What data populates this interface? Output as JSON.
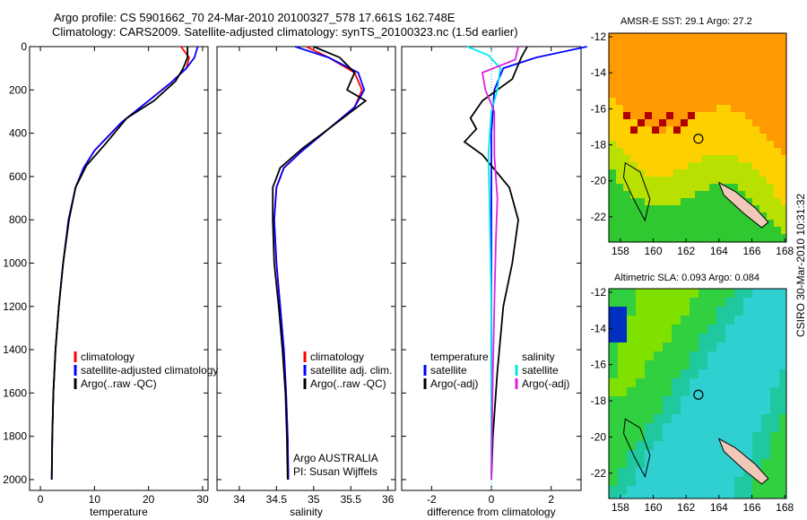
{
  "titles": {
    "line1": "Argo profile: CS 5901662_70 24-Mar-2010 20100327_578 17.661S 162.748E",
    "line2": "Climatology: CARS2009. Satellite-adjusted climatology: synTS_20100323.nc (1.5d earlier)"
  },
  "colors": {
    "climatology": "#ff0000",
    "satellite": "#0000ff",
    "argo": "#000000",
    "sal_satellite": "#00e5ee",
    "sal_argo": "#e020e0"
  },
  "chart_data": [
    {
      "type": "line",
      "xlabel": "temperature",
      "ylim": [
        2050,
        0
      ],
      "xlim": [
        -2,
        31
      ],
      "xticks": [
        0,
        10,
        20,
        30
      ],
      "yticks": [
        0,
        200,
        400,
        600,
        800,
        1000,
        1200,
        1400,
        1600,
        1800,
        2000
      ],
      "legend": [
        "climatology",
        "satellite-adjusted climatology",
        "Argo(..raw -QC)"
      ],
      "series": [
        {
          "name": "climatology",
          "color": "#ff0000",
          "x": [
            26,
            27.5,
            27,
            24,
            20,
            15,
            10,
            8,
            6.5,
            5.2,
            4.2,
            3.4,
            2.8,
            2.4,
            2.2,
            2.1
          ],
          "y": [
            0,
            50,
            100,
            170,
            250,
            350,
            480,
            560,
            650,
            800,
            1000,
            1200,
            1400,
            1600,
            1800,
            2000
          ]
        },
        {
          "name": "satellite-adjusted climatology",
          "color": "#0000ff",
          "x": [
            29.1,
            28.5,
            27,
            24,
            20,
            15,
            10,
            8,
            6.5,
            5.2,
            4.2,
            3.4,
            2.8,
            2.4,
            2.2,
            2.1
          ],
          "y": [
            0,
            50,
            100,
            170,
            250,
            350,
            480,
            560,
            650,
            800,
            1000,
            1200,
            1400,
            1600,
            1800,
            2000
          ]
        },
        {
          "name": "Argo(..raw -QC)",
          "color": "#000000",
          "x": [
            27.2,
            27.2,
            26.4,
            25,
            21,
            16,
            12,
            8.5,
            6.5,
            5.3,
            4.2,
            3.4,
            2.8,
            2.4,
            2.2,
            2.1
          ],
          "y": [
            0,
            50,
            100,
            160,
            250,
            330,
            450,
            550,
            650,
            800,
            1000,
            1200,
            1400,
            1600,
            1800,
            2000
          ]
        }
      ]
    },
    {
      "type": "line",
      "xlabel": "salinity",
      "ylim": [
        2050,
        0
      ],
      "xlim": [
        33.7,
        36.1
      ],
      "xticks": [
        34,
        34.5,
        35,
        35.5,
        36
      ],
      "legend": [
        "climatology",
        "satellite adj. clim.",
        "Argo(..raw -QC)"
      ],
      "annotations": [
        "Argo AUSTRALIA",
        "PI: Susan Wijffels"
      ],
      "series": [
        {
          "name": "climatology",
          "color": "#ff0000",
          "x": [
            34.9,
            35.2,
            35.55,
            35.65,
            35.55,
            35.2,
            34.85,
            34.6,
            34.5,
            34.47,
            34.5,
            34.55,
            34.6,
            34.63,
            34.65,
            34.66
          ],
          "y": [
            0,
            50,
            120,
            200,
            280,
            380,
            480,
            560,
            650,
            800,
            1000,
            1200,
            1400,
            1600,
            1800,
            2000
          ]
        },
        {
          "name": "satellite adj. clim.",
          "color": "#0000ff",
          "x": [
            34.75,
            35.2,
            35.6,
            35.68,
            35.55,
            35.2,
            34.85,
            34.6,
            34.5,
            34.47,
            34.5,
            34.55,
            34.6,
            34.63,
            34.65,
            34.66
          ],
          "y": [
            0,
            50,
            120,
            200,
            280,
            380,
            480,
            560,
            650,
            800,
            1000,
            1200,
            1400,
            1600,
            1800,
            2000
          ]
        },
        {
          "name": "Argo(..raw -QC)",
          "color": "#000000",
          "x": [
            35.0,
            35.35,
            35.55,
            35.45,
            35.7,
            35.2,
            34.85,
            34.55,
            34.45,
            34.45,
            34.47,
            34.53,
            34.58,
            34.62,
            34.64,
            34.65
          ],
          "y": [
            0,
            50,
            120,
            200,
            250,
            380,
            470,
            560,
            650,
            800,
            1000,
            1200,
            1400,
            1600,
            1800,
            2000
          ]
        }
      ]
    },
    {
      "type": "line",
      "xlabel": "difference from climatology",
      "ylim": [
        2050,
        0
      ],
      "xlim": [
        -3,
        3
      ],
      "xticks": [
        -2,
        0,
        2
      ],
      "legend_groups": [
        {
          "title": "temperature",
          "items": [
            "satellite",
            "Argo(-adj)"
          ]
        },
        {
          "title": "salinity",
          "items": [
            "satellite",
            "Argo(-adj)"
          ]
        }
      ],
      "series": [
        {
          "name": "temperature satellite",
          "color": "#0000ff",
          "x": [
            3.2,
            1.5,
            0.4,
            0.1,
            0,
            0,
            0,
            0,
            0,
            0,
            0
          ],
          "y": [
            0,
            50,
            100,
            200,
            400,
            600,
            800,
            1000,
            1400,
            1800,
            2000
          ]
        },
        {
          "name": "temperature Argo(-adj)",
          "color": "#000000",
          "x": [
            1.2,
            1.0,
            0.7,
            -0.3,
            -0.7,
            -0.5,
            -0.9,
            -0.3,
            0.6,
            0.9,
            0.7,
            0.4,
            0.2,
            0.05,
            0
          ],
          "y": [
            0,
            50,
            150,
            250,
            330,
            380,
            440,
            500,
            650,
            800,
            1000,
            1200,
            1500,
            1800,
            2000
          ]
        },
        {
          "name": "salinity satellite",
          "color": "#00e5ee",
          "x": [
            -0.8,
            -0.1,
            0.3,
            0.2,
            0,
            -0.1,
            -0.05,
            0,
            0,
            0
          ],
          "y": [
            0,
            40,
            100,
            200,
            300,
            500,
            800,
            1200,
            1600,
            2000
          ]
        },
        {
          "name": "salinity Argo(-adj)",
          "color": "#e020e0",
          "x": [
            0.9,
            0.8,
            -0.3,
            -0.2,
            0.1,
            0.1,
            0.2,
            0.15,
            0.1,
            0.05,
            0
          ],
          "y": [
            0,
            60,
            120,
            200,
            300,
            500,
            700,
            900,
            1200,
            1500,
            2000
          ]
        }
      ]
    },
    {
      "type": "heatmap",
      "title": "AMSR-E SST: 29.1 Argo: 27.2",
      "xlim": [
        157.3,
        168.1
      ],
      "ylim": [
        -23.4,
        -11.8
      ],
      "xticks": [
        158,
        160,
        162,
        164,
        166,
        168
      ],
      "yticks": [
        -12,
        -14,
        -16,
        -18,
        -20,
        -22
      ],
      "marker": {
        "lon": 162.748,
        "lat": -17.661
      }
    },
    {
      "type": "heatmap",
      "title": "Altimetric SLA: 0.093 Argo: 0.084",
      "xlim": [
        157.3,
        168.1
      ],
      "ylim": [
        -23.4,
        -11.8
      ],
      "xticks": [
        158,
        160,
        162,
        164,
        166,
        168
      ],
      "yticks": [
        -12,
        -14,
        -16,
        -18,
        -20,
        -22
      ],
      "marker": {
        "lon": 162.748,
        "lat": -17.661
      }
    }
  ],
  "timestamp": "CSIRO 30-Mar-2010 10:31:32"
}
